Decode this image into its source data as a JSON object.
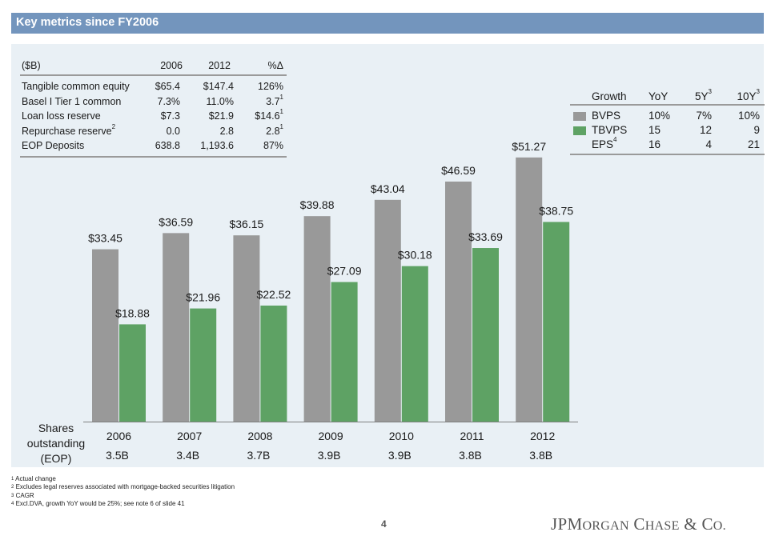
{
  "header": {
    "title": "Key metrics since FY2006"
  },
  "metrics_table": {
    "headers": [
      "($B)",
      "2006",
      "2012",
      "%Δ"
    ],
    "rows": [
      {
        "label": "Tangible common equity",
        "label_sup": "",
        "v2006": "$65.4",
        "v2012": "$147.4",
        "change": "126%",
        "change_sup": ""
      },
      {
        "label": "Basel I Tier 1 common",
        "label_sup": "",
        "v2006": "7.3%",
        "v2012": "11.0%",
        "change": "3.7",
        "change_sup": "1"
      },
      {
        "label": "Loan loss reserve",
        "label_sup": "",
        "v2006": "$7.3",
        "v2012": "$21.9",
        "change": "$14.6",
        "change_sup": "1"
      },
      {
        "label": "Repurchase reserve",
        "label_sup": "2",
        "v2006": "0.0",
        "v2012": "2.8",
        "change": "2.8",
        "change_sup": "1"
      },
      {
        "label": "EOP Deposits",
        "label_sup": "",
        "v2006": "638.8",
        "v2012": "1,193.6",
        "change": "87%",
        "change_sup": ""
      }
    ]
  },
  "growth_table": {
    "headers": {
      "label": "Growth",
      "yoy": "YoY",
      "y5": "5Y",
      "y5_sup": "3",
      "y10": "10Y",
      "y10_sup": "3"
    },
    "rows": [
      {
        "label": "BVPS",
        "label_sup": "",
        "swatch": "#999999",
        "yoy": "10%",
        "y5": "7%",
        "y10": "10%"
      },
      {
        "label": "TBVPS",
        "label_sup": "",
        "swatch": "#5ea264",
        "yoy": "15",
        "y5": "12",
        "y10": "9"
      },
      {
        "label": "EPS",
        "label_sup": "4",
        "swatch": "",
        "yoy": "16",
        "y5": "4",
        "y10": "21"
      }
    ]
  },
  "chart_data": {
    "type": "bar",
    "title": "",
    "xlabel": "",
    "ylabel": "",
    "categories": [
      "2006",
      "2007",
      "2008",
      "2009",
      "2010",
      "2011",
      "2012"
    ],
    "series": [
      {
        "name": "BVPS",
        "color": "#999999",
        "values": [
          33.45,
          36.59,
          36.15,
          39.88,
          43.04,
          46.59,
          51.27
        ],
        "labels": [
          "$33.45",
          "$36.59",
          "$36.15",
          "$39.88",
          "$43.04",
          "$46.59",
          "$51.27"
        ]
      },
      {
        "name": "TBVPS",
        "color": "#5ea264",
        "values": [
          18.88,
          21.96,
          22.52,
          27.09,
          30.18,
          33.69,
          38.75
        ],
        "labels": [
          "$18.88",
          "$21.96",
          "$22.52",
          "$27.09",
          "$30.18",
          "$33.69",
          "$38.75"
        ]
      }
    ],
    "ylim": [
      0,
      55
    ],
    "grid": false,
    "legend": "top-right",
    "shares_outstanding_label": "Shares outstanding (EOP)",
    "shares_outstanding": [
      "3.5B",
      "3.4B",
      "3.7B",
      "3.9B",
      "3.9B",
      "3.8B",
      "3.8B"
    ]
  },
  "footnotes": [
    {
      "num": "1",
      "text": "Actual change"
    },
    {
      "num": "2",
      "text": "Excludes legal reserves associated with mortgage-backed securities litigation"
    },
    {
      "num": "3",
      "text": "CAGR"
    },
    {
      "num": "4",
      "text": "Excl.DVA, growth YoY would be 25%; see note 6 of slide 41"
    }
  ],
  "footer": {
    "page_number": "4",
    "logo_text": "JPMorgan Chase & Co."
  }
}
